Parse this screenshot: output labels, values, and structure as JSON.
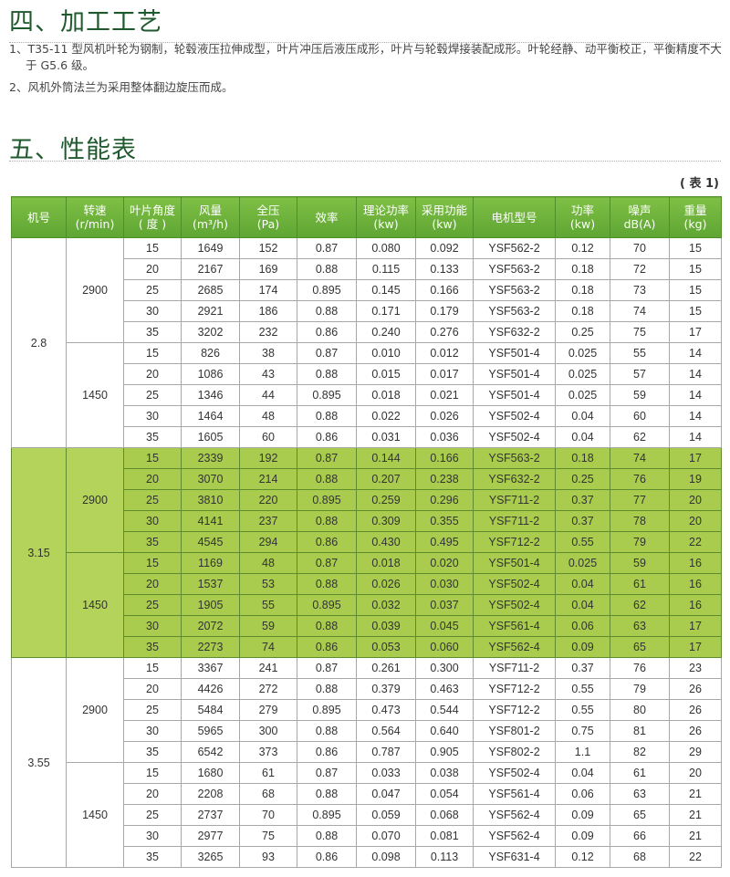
{
  "section4": {
    "title": "四、加工工艺",
    "items": [
      "1、T35-11 型风机叶轮为钢制，轮毂液压拉伸成型，叶片冲压后液压成形，叶片与轮毂焊接装配成形。叶轮经静、动平衡校正，平衡精度不大于 G5.6 级。",
      "2、风机外筒法兰为采用整体翻边旋压而成。"
    ]
  },
  "section5": {
    "title": "五、性能表",
    "table_no": "( 表 1)"
  },
  "colors": {
    "header_green": "#6db33f",
    "highlight_green": "#a9cc4f",
    "heading": "#1f5a2e"
  },
  "table": {
    "headers": [
      "机号",
      "转速\n(r/min)",
      "叶片角度\n( 度 )",
      "风量\n(m³/h)",
      "全压\n(Pa)",
      "效率",
      "理论功率\n(kw)",
      "采用功能\n(kw)",
      "电机型号",
      "功率\n(kw)",
      "噪声\ndB(A)",
      "重量\n(kg)"
    ],
    "groups": [
      {
        "model": "2.8",
        "highlight": false,
        "speeds": [
          {
            "speed": "2900",
            "rows": [
              [
                "15",
                "1649",
                "152",
                "0.87",
                "0.080",
                "0.092",
                "YSF562-2",
                "0.12",
                "70",
                "15"
              ],
              [
                "20",
                "2167",
                "169",
                "0.88",
                "0.115",
                "0.133",
                "YSF563-2",
                "0.18",
                "72",
                "15"
              ],
              [
                "25",
                "2685",
                "174",
                "0.895",
                "0.145",
                "0.166",
                "YSF563-2",
                "0.18",
                "73",
                "15"
              ],
              [
                "30",
                "2921",
                "186",
                "0.88",
                "0.171",
                "0.179",
                "YSF563-2",
                "0.18",
                "74",
                "15"
              ],
              [
                "35",
                "3202",
                "232",
                "0.86",
                "0.240",
                "0.276",
                "YSF632-2",
                "0.25",
                "75",
                "17"
              ]
            ]
          },
          {
            "speed": "1450",
            "rows": [
              [
                "15",
                "826",
                "38",
                "0.87",
                "0.010",
                "0.012",
                "YSF501-4",
                "0.025",
                "55",
                "14"
              ],
              [
                "20",
                "1086",
                "43",
                "0.88",
                "0.015",
                "0.017",
                "YSF501-4",
                "0.025",
                "57",
                "14"
              ],
              [
                "25",
                "1346",
                "44",
                "0.895",
                "0.018",
                "0.021",
                "YSF501-4",
                "0.025",
                "59",
                "14"
              ],
              [
                "30",
                "1464",
                "48",
                "0.88",
                "0.022",
                "0.026",
                "YSF502-4",
                "0.04",
                "60",
                "14"
              ],
              [
                "35",
                "1605",
                "60",
                "0.86",
                "0.031",
                "0.036",
                "YSF502-4",
                "0.04",
                "62",
                "14"
              ]
            ]
          }
        ]
      },
      {
        "model": "3.15",
        "highlight": true,
        "speeds": [
          {
            "speed": "2900",
            "rows": [
              [
                "15",
                "2339",
                "192",
                "0.87",
                "0.144",
                "0.166",
                "YSF563-2",
                "0.18",
                "74",
                "17"
              ],
              [
                "20",
                "3070",
                "214",
                "0.88",
                "0.207",
                "0.238",
                "YSF632-2",
                "0.25",
                "76",
                "19"
              ],
              [
                "25",
                "3810",
                "220",
                "0.895",
                "0.259",
                "0.296",
                "YSF711-2",
                "0.37",
                "77",
                "20"
              ],
              [
                "30",
                "4141",
                "237",
                "0.88",
                "0.309",
                "0.355",
                "YSF711-2",
                "0.37",
                "78",
                "20"
              ],
              [
                "35",
                "4545",
                "294",
                "0.86",
                "0.430",
                "0.495",
                "YSF712-2",
                "0.55",
                "79",
                "22"
              ]
            ]
          },
          {
            "speed": "1450",
            "rows": [
              [
                "15",
                "1169",
                "48",
                "0.87",
                "0.018",
                "0.020",
                "YSF501-4",
                "0.025",
                "59",
                "16"
              ],
              [
                "20",
                "1537",
                "53",
                "0.88",
                "0.026",
                "0.030",
                "YSF502-4",
                "0.04",
                "61",
                "16"
              ],
              [
                "25",
                "1905",
                "55",
                "0.895",
                "0.032",
                "0.037",
                "YSF502-4",
                "0.04",
                "62",
                "16"
              ],
              [
                "30",
                "2072",
                "59",
                "0.88",
                "0.039",
                "0.045",
                "YSF561-4",
                "0.06",
                "63",
                "17"
              ],
              [
                "35",
                "2273",
                "74",
                "0.86",
                "0.053",
                "0.060",
                "YSF562-4",
                "0.09",
                "65",
                "17"
              ]
            ]
          }
        ]
      },
      {
        "model": "3.55",
        "highlight": false,
        "speeds": [
          {
            "speed": "2900",
            "rows": [
              [
                "15",
                "3367",
                "241",
                "0.87",
                "0.261",
                "0.300",
                "YSF711-2",
                "0.37",
                "76",
                "23"
              ],
              [
                "20",
                "4426",
                "272",
                "0.88",
                "0.379",
                "0.463",
                "YSF712-2",
                "0.55",
                "79",
                "26"
              ],
              [
                "25",
                "5484",
                "279",
                "0.895",
                "0.473",
                "0.544",
                "YSF712-2",
                "0.55",
                "80",
                "26"
              ],
              [
                "30",
                "5965",
                "300",
                "0.88",
                "0.564",
                "0.640",
                "YSF801-2",
                "0.75",
                "81",
                "26"
              ],
              [
                "35",
                "6542",
                "373",
                "0.86",
                "0.787",
                "0.905",
                "YSF802-2",
                "1.1",
                "82",
                "29"
              ]
            ]
          },
          {
            "speed": "1450",
            "rows": [
              [
                "15",
                "1680",
                "61",
                "0.87",
                "0.033",
                "0.038",
                "YSF502-4",
                "0.04",
                "61",
                "20"
              ],
              [
                "20",
                "2208",
                "68",
                "0.88",
                "0.047",
                "0.054",
                "YSF561-4",
                "0.06",
                "63",
                "21"
              ],
              [
                "25",
                "2737",
                "70",
                "0.895",
                "0.059",
                "0.068",
                "YSF562-4",
                "0.09",
                "65",
                "21"
              ],
              [
                "30",
                "2977",
                "75",
                "0.88",
                "0.070",
                "0.081",
                "YSF562-4",
                "0.09",
                "66",
                "21"
              ],
              [
                "35",
                "3265",
                "93",
                "0.86",
                "0.098",
                "0.113",
                "YSF631-4",
                "0.12",
                "68",
                "22"
              ]
            ]
          }
        ]
      }
    ]
  }
}
